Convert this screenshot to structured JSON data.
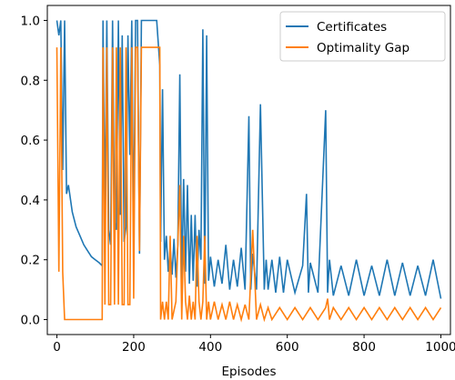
{
  "chart_data": {
    "type": "line",
    "title": "",
    "xlabel": "Episodes",
    "ylabel": "",
    "xlim": [
      -25,
      1025
    ],
    "ylim": [
      -0.05,
      1.05
    ],
    "xticks": [
      0,
      200,
      400,
      600,
      800,
      1000
    ],
    "yticks": [
      0.0,
      0.2,
      0.4,
      0.6,
      0.8,
      1.0
    ],
    "xtick_labels": [
      "0",
      "200",
      "400",
      "600",
      "800",
      "1000"
    ],
    "ytick_labels": [
      "0.0",
      "0.2",
      "0.4",
      "0.6",
      "0.8",
      "1.0"
    ],
    "grid": false,
    "legend_position": "top-right",
    "series": [
      {
        "name": "Certificates",
        "color": "#1f77b4",
        "x": [
          0,
          5,
          10,
          15,
          20,
          25,
          30,
          40,
          50,
          60,
          70,
          80,
          90,
          100,
          110,
          118,
          120,
          125,
          130,
          135,
          140,
          145,
          150,
          155,
          160,
          165,
          170,
          175,
          180,
          185,
          190,
          195,
          200,
          205,
          210,
          215,
          220,
          230,
          240,
          250,
          260,
          268,
          270,
          275,
          280,
          285,
          290,
          295,
          300,
          305,
          310,
          315,
          320,
          325,
          330,
          335,
          340,
          345,
          350,
          355,
          360,
          365,
          370,
          375,
          380,
          385,
          390,
          395,
          400,
          410,
          420,
          430,
          440,
          450,
          460,
          470,
          480,
          490,
          500,
          505,
          510,
          520,
          530,
          540,
          545,
          550,
          560,
          570,
          580,
          590,
          600,
          620,
          640,
          650,
          655,
          660,
          680,
          700,
          705,
          710,
          720,
          740,
          760,
          780,
          800,
          820,
          840,
          860,
          880,
          900,
          920,
          940,
          960,
          980,
          1000
        ],
        "y": [
          1.0,
          0.95,
          1.0,
          0.5,
          1.0,
          0.42,
          0.45,
          0.36,
          0.31,
          0.28,
          0.25,
          0.23,
          0.21,
          0.2,
          0.19,
          0.18,
          1.0,
          0.35,
          1.0,
          0.3,
          0.25,
          1.0,
          0.33,
          0.3,
          1.0,
          0.35,
          0.95,
          0.26,
          0.31,
          0.95,
          0.55,
          1.0,
          0.28,
          1.0,
          1.0,
          0.22,
          1.0,
          1.0,
          1.0,
          1.0,
          1.0,
          0.85,
          0.26,
          0.77,
          0.2,
          0.28,
          0.16,
          0.24,
          0.15,
          0.27,
          0.14,
          0.25,
          0.82,
          0.12,
          0.47,
          0.16,
          0.45,
          0.12,
          0.35,
          0.13,
          0.35,
          0.11,
          0.3,
          0.2,
          0.97,
          0.12,
          0.95,
          0.13,
          0.21,
          0.11,
          0.2,
          0.12,
          0.25,
          0.1,
          0.2,
          0.11,
          0.24,
          0.1,
          0.68,
          0.1,
          0.22,
          0.1,
          0.72,
          0.1,
          0.2,
          0.1,
          0.2,
          0.09,
          0.21,
          0.09,
          0.2,
          0.09,
          0.18,
          0.42,
          0.09,
          0.19,
          0.09,
          0.7,
          0.09,
          0.2,
          0.08,
          0.18,
          0.08,
          0.2,
          0.08,
          0.18,
          0.08,
          0.2,
          0.08,
          0.19,
          0.08,
          0.18,
          0.08,
          0.2,
          0.07
        ]
      },
      {
        "name": "Optimality Gap",
        "color": "#ff7f0e",
        "x": [
          0,
          5,
          10,
          15,
          20,
          25,
          40,
          60,
          80,
          100,
          118,
          120,
          125,
          130,
          135,
          140,
          145,
          150,
          155,
          160,
          165,
          170,
          175,
          180,
          185,
          190,
          195,
          200,
          205,
          210,
          215,
          220,
          230,
          240,
          250,
          260,
          268,
          270,
          275,
          280,
          285,
          290,
          295,
          300,
          310,
          320,
          325,
          330,
          335,
          340,
          345,
          350,
          355,
          360,
          365,
          370,
          375,
          380,
          385,
          390,
          395,
          400,
          410,
          420,
          430,
          440,
          450,
          460,
          470,
          480,
          490,
          500,
          510,
          520,
          530,
          540,
          550,
          560,
          580,
          600,
          620,
          640,
          660,
          680,
          700,
          705,
          710,
          720,
          740,
          760,
          780,
          800,
          820,
          840,
          860,
          880,
          900,
          920,
          940,
          960,
          980,
          1000
        ],
        "y": [
          0.91,
          0.16,
          0.91,
          0.16,
          0.0,
          0.0,
          0.0,
          0.0,
          0.0,
          0.0,
          0.0,
          0.91,
          0.05,
          0.91,
          0.05,
          0.05,
          0.91,
          0.05,
          0.91,
          0.05,
          0.91,
          0.05,
          0.05,
          0.91,
          0.05,
          0.05,
          0.91,
          0.07,
          0.91,
          0.91,
          0.23,
          0.91,
          0.91,
          0.91,
          0.91,
          0.91,
          0.91,
          0.0,
          0.06,
          0.0,
          0.06,
          0.0,
          0.28,
          0.0,
          0.06,
          0.45,
          0.0,
          0.28,
          0.06,
          0.0,
          0.08,
          0.0,
          0.06,
          0.0,
          0.28,
          0.06,
          0.0,
          0.06,
          0.28,
          0.0,
          0.06,
          0.0,
          0.06,
          0.0,
          0.05,
          0.0,
          0.06,
          0.0,
          0.05,
          0.0,
          0.05,
          0.0,
          0.3,
          0.0,
          0.05,
          0.0,
          0.04,
          0.0,
          0.04,
          0.0,
          0.04,
          0.0,
          0.04,
          0.0,
          0.04,
          0.07,
          0.0,
          0.04,
          0.0,
          0.04,
          0.0,
          0.04,
          0.0,
          0.04,
          0.0,
          0.04,
          0.0,
          0.04,
          0.0,
          0.04,
          0.0,
          0.04
        ]
      }
    ]
  }
}
